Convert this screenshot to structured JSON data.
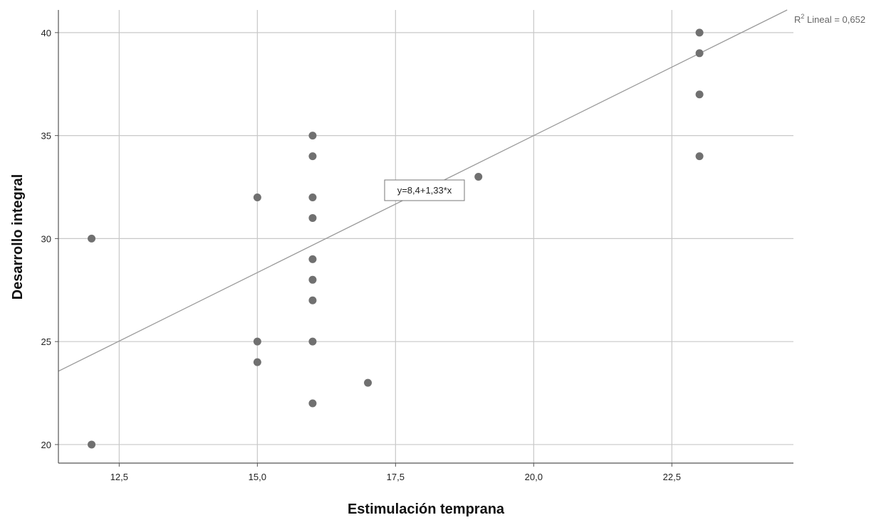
{
  "chart_data": {
    "type": "scatter",
    "title": "",
    "xlabel": "Estimulación temprana",
    "ylabel": "Desarrollo integral",
    "xlim": [
      11.4,
      24.7
    ],
    "ylim": [
      19.1,
      41.1
    ],
    "x_ticks": [
      12.5,
      15.0,
      17.5,
      20.0,
      22.5
    ],
    "x_tick_labels": [
      "12,5",
      "15,0",
      "17,5",
      "20,0",
      "22,5"
    ],
    "y_ticks": [
      20,
      25,
      30,
      35,
      40
    ],
    "y_tick_labels": [
      "20",
      "25",
      "30",
      "35",
      "40"
    ],
    "grid": true,
    "series": [
      {
        "points": [
          {
            "x": 12,
            "y": 30
          },
          {
            "x": 12,
            "y": 20
          },
          {
            "x": 15,
            "y": 32
          },
          {
            "x": 15,
            "y": 25
          },
          {
            "x": 15,
            "y": 24
          },
          {
            "x": 16,
            "y": 35
          },
          {
            "x": 16,
            "y": 34
          },
          {
            "x": 16,
            "y": 32
          },
          {
            "x": 16,
            "y": 31
          },
          {
            "x": 16,
            "y": 29
          },
          {
            "x": 16,
            "y": 28
          },
          {
            "x": 16,
            "y": 27
          },
          {
            "x": 16,
            "y": 25
          },
          {
            "x": 16,
            "y": 22
          },
          {
            "x": 17,
            "y": 23
          },
          {
            "x": 19,
            "y": 33
          },
          {
            "x": 23,
            "y": 40
          },
          {
            "x": 23,
            "y": 39
          },
          {
            "x": 23,
            "y": 37
          },
          {
            "x": 23,
            "y": 34
          }
        ],
        "color": "#707070"
      }
    ],
    "fit_line": {
      "intercept": 8.4,
      "slope": 1.33,
      "equation_label": "y=8,4+1,33*x",
      "r2_label_prefix": "R",
      "r2_label_superscript": "2",
      "r2_label_suffix": " Lineal = 0,652",
      "color": "#9a9a9a"
    },
    "colors": {
      "grid": "#c8c8c8",
      "axis": "#555555"
    }
  }
}
